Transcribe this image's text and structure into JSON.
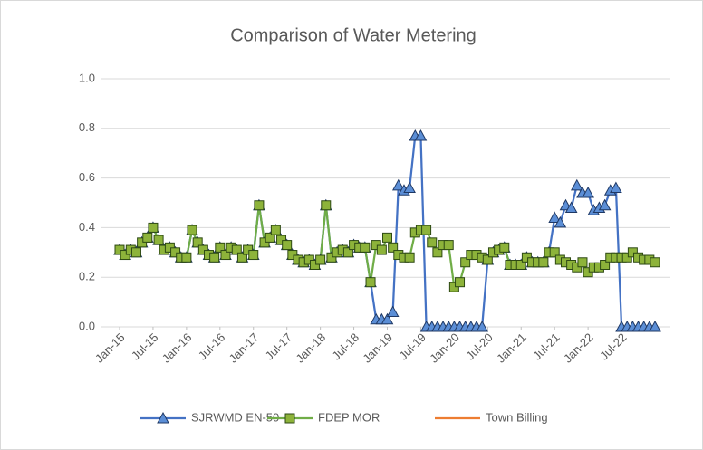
{
  "chart_data": {
    "type": "line",
    "title": "Comparison of Water Metering",
    "categories": [
      "Jan-15",
      null,
      null,
      null,
      null,
      null,
      "Jul-15",
      null,
      null,
      null,
      null,
      null,
      "Jan-16",
      null,
      null,
      null,
      null,
      null,
      "Jul-16",
      null,
      null,
      null,
      null,
      null,
      "Jan-17",
      null,
      null,
      null,
      null,
      null,
      "Jul-17",
      null,
      null,
      null,
      null,
      null,
      "Jan-18",
      null,
      null,
      null,
      null,
      null,
      "Jul-18",
      null,
      null,
      null,
      null,
      null,
      "Jan-19",
      null,
      null,
      null,
      null,
      null,
      "Jul-19",
      null,
      null,
      null,
      null,
      null,
      "Jan-20",
      null,
      null,
      null,
      null,
      null,
      "Jul-20",
      null,
      null,
      null,
      null,
      null,
      "Jan-21",
      null,
      null,
      null,
      null,
      null,
      "Jul-21",
      null,
      null,
      null,
      null,
      null,
      "Jan-22",
      null,
      null,
      null,
      null,
      null,
      "Jul-22",
      null,
      null,
      null,
      null,
      null,
      null
    ],
    "series": [
      {
        "name": "SJRWMD EN-50",
        "color": "#4472c4",
        "marker": "triangle",
        "values": [
          0.31,
          0.29,
          0.31,
          0.3,
          0.34,
          0.36,
          0.4,
          0.35,
          0.31,
          0.32,
          0.3,
          0.28,
          0.28,
          0.39,
          0.34,
          0.31,
          0.29,
          0.28,
          0.32,
          0.29,
          0.32,
          0.31,
          0.28,
          0.31,
          0.29,
          0.49,
          0.34,
          0.36,
          0.39,
          0.35,
          0.33,
          0.29,
          0.27,
          0.26,
          0.27,
          0.25,
          0.27,
          0.49,
          0.28,
          0.3,
          0.31,
          0.3,
          0.33,
          0.32,
          0.32,
          0.18,
          0.03,
          0.03,
          0.03,
          0.06,
          0.57,
          0.55,
          0.56,
          0.77,
          0.77,
          0,
          0,
          0,
          0,
          0,
          0,
          0,
          0,
          0,
          0,
          0,
          0.27,
          0.3,
          0.31,
          0.32,
          0.25,
          0.25,
          0.25,
          0.28,
          0.26,
          0.26,
          0.26,
          0.3,
          0.44,
          0.42,
          0.49,
          0.48,
          0.57,
          0.54,
          0.54,
          0.47,
          0.48,
          0.49,
          0.55,
          0.56,
          0,
          0,
          0,
          0,
          0,
          0,
          0
        ]
      },
      {
        "name": "FDEP MOR",
        "color": "#70ad47",
        "marker": "square",
        "values": [
          0.31,
          0.29,
          0.31,
          0.3,
          0.34,
          0.36,
          0.4,
          0.35,
          0.31,
          0.32,
          0.3,
          0.28,
          0.28,
          0.39,
          0.34,
          0.31,
          0.29,
          0.28,
          0.32,
          0.29,
          0.32,
          0.31,
          0.28,
          0.31,
          0.29,
          0.49,
          0.34,
          0.36,
          0.39,
          0.35,
          0.33,
          0.29,
          0.27,
          0.26,
          0.27,
          0.25,
          0.27,
          0.49,
          0.28,
          0.3,
          0.31,
          0.3,
          0.33,
          0.32,
          0.32,
          0.18,
          0.33,
          0.31,
          0.36,
          0.32,
          0.29,
          0.28,
          0.28,
          0.38,
          0.39,
          0.39,
          0.34,
          0.3,
          0.33,
          0.33,
          0.16,
          0.18,
          0.26,
          0.29,
          0.29,
          0.28,
          0.27,
          0.3,
          0.31,
          0.32,
          0.25,
          0.25,
          0.25,
          0.28,
          0.26,
          0.26,
          0.26,
          0.3,
          0.3,
          0.27,
          0.26,
          0.25,
          0.24,
          0.26,
          0.22,
          0.24,
          0.24,
          0.25,
          0.28,
          0.28,
          0.28,
          0.28,
          0.3,
          0.28,
          0.27,
          0.27,
          0.26
        ]
      },
      {
        "name": "Town Billing",
        "color": "#ed7d31",
        "values": [
          null,
          null,
          null,
          null,
          null,
          null,
          null,
          null,
          null,
          null,
          null,
          null,
          null,
          null,
          null,
          null,
          null,
          null,
          null,
          null,
          null,
          null,
          null,
          null,
          null,
          null,
          null,
          null,
          null,
          null,
          null,
          null,
          null,
          null,
          null,
          null,
          null,
          null,
          null,
          null,
          null,
          null,
          null,
          null,
          null,
          null,
          null,
          null,
          null,
          null,
          null,
          null,
          null,
          null,
          null,
          null,
          null,
          null,
          null,
          null,
          null,
          null,
          null,
          null,
          null,
          null,
          null,
          null,
          null,
          null,
          null,
          null,
          null,
          null,
          null,
          null,
          null,
          null,
          null,
          null,
          null,
          null,
          null,
          null,
          null,
          null,
          null,
          null,
          null,
          null,
          null,
          null,
          null,
          null,
          null,
          null,
          null
        ]
      }
    ],
    "ylim": [
      0,
      1
    ],
    "yticks": [
      {
        "value": 0,
        "label": "0.0"
      },
      {
        "value": 0.2,
        "label": "0.2"
      },
      {
        "value": 0.4,
        "label": "0.4"
      },
      {
        "value": 0.6,
        "label": "0.6"
      },
      {
        "value": 0.8,
        "label": "0.8"
      },
      {
        "value": 1,
        "label": "1.0"
      }
    ],
    "grid": true,
    "legend": "bottom"
  }
}
